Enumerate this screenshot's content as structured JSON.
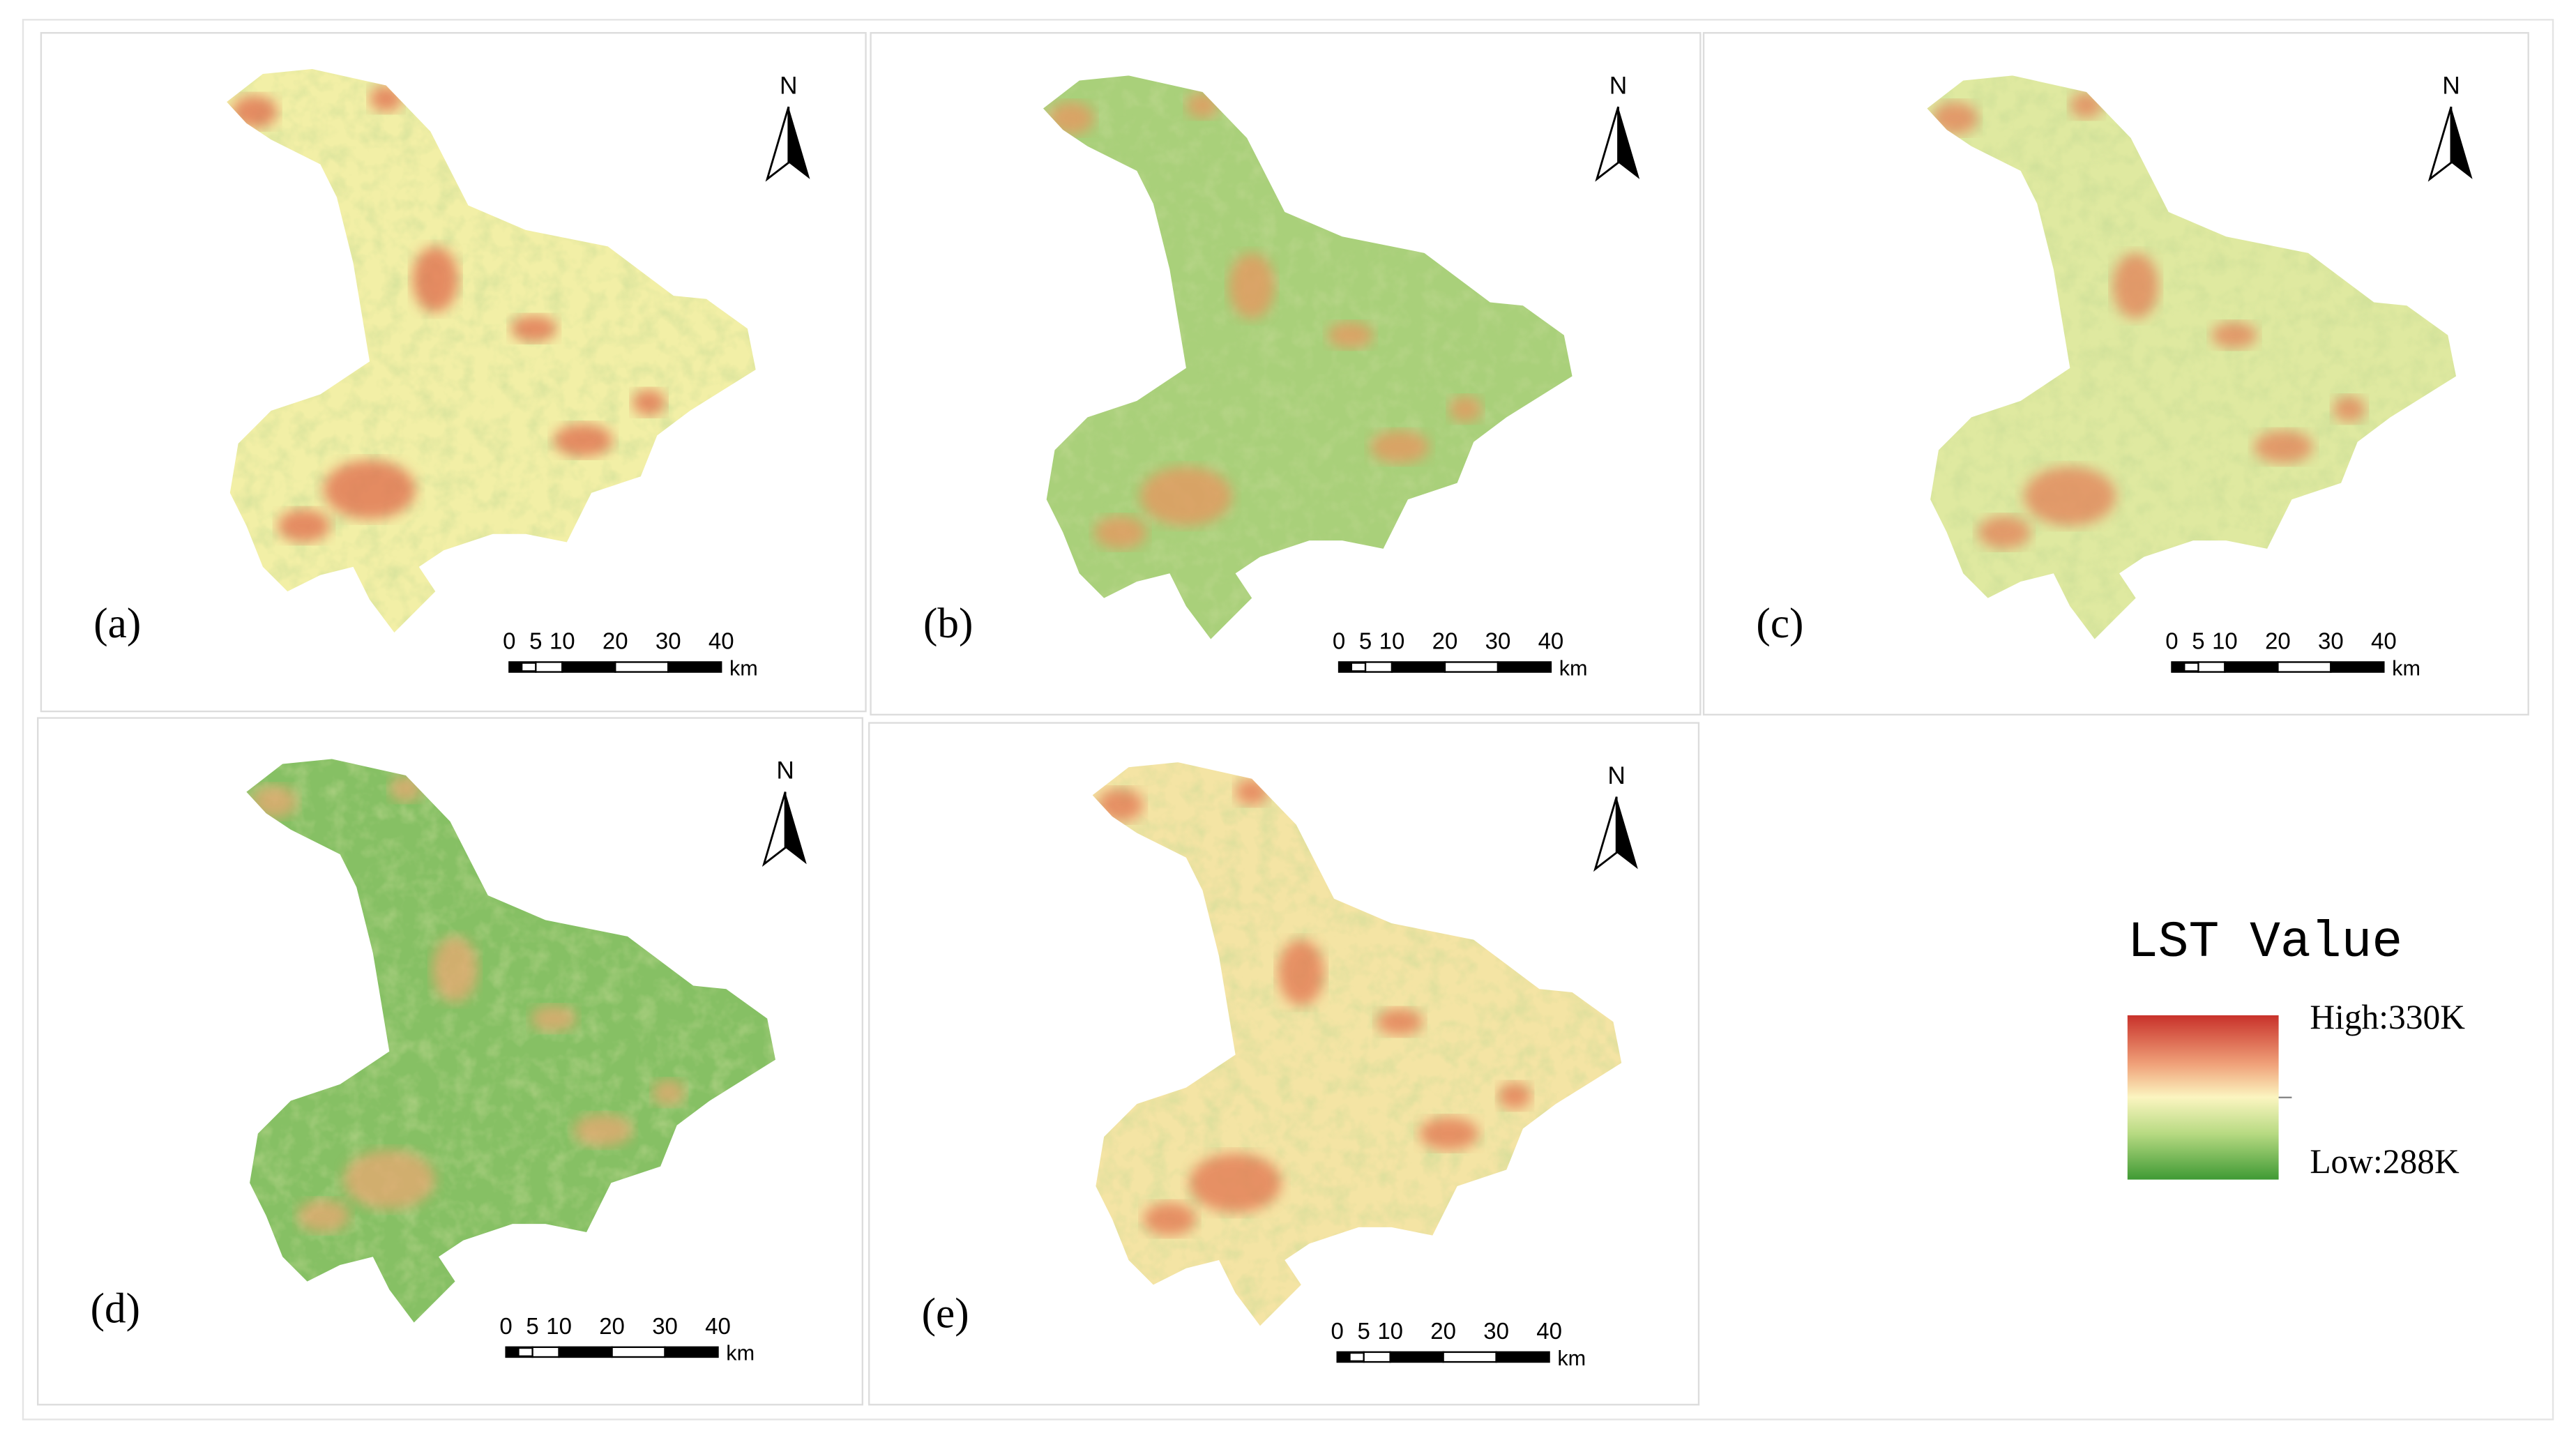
{
  "panels": [
    {
      "label": "(a)",
      "color": "#f2efa6",
      "hot_color": "#e06a4c"
    },
    {
      "label": "(b)",
      "color": "#a9d07a",
      "hot_color": "#e8955f"
    },
    {
      "label": "(c)",
      "color": "#dfe9a0",
      "hot_color": "#e38058"
    },
    {
      "label": "(d)",
      "color": "#86c064",
      "hot_color": "#eaa872"
    },
    {
      "label": "(e)",
      "color": "#f4e4a4",
      "hot_color": "#e2744f"
    }
  ],
  "north": "N",
  "scale_bar": {
    "ticks": [
      0,
      5,
      10,
      20,
      30,
      40
    ],
    "unit": "km"
  },
  "legend": {
    "title": "LST Value",
    "high": "High:330K",
    "low": "Low:288K"
  }
}
